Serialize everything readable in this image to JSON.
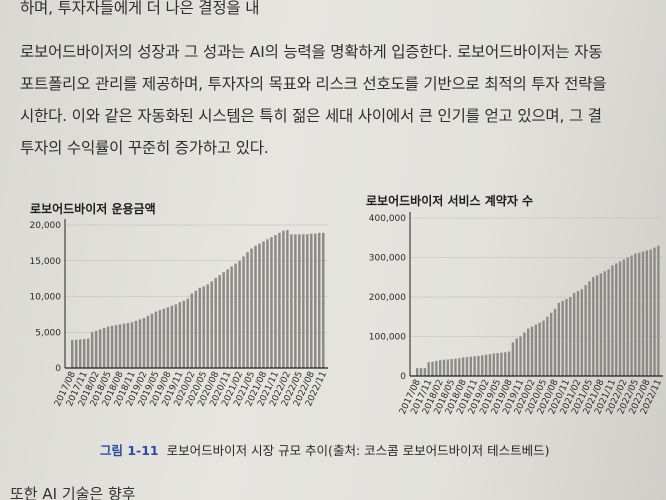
{
  "text": {
    "line0": "하며, 투자자들에게 더 나은 결정을 내",
    "line1": "로보어드바이저의 성장과 그 성과는 AI의 능력을 명확하게 입증한다. 로보어드바이저는 자동",
    "line2": "포트폴리오 관리를 제공하며, 투자자의 목표와 리스크 선호도를 기반으로 최적의 투자 전략을",
    "line3": "시한다. 이와 같은 자동화된 시스템은 특히 젊은 세대 사이에서 큰 인기를 얻고 있으며, 그 결",
    "line4": "투자의 수익률이 꾸준히 증가하고 있다.",
    "bottom": "또한 AI 기술은 향후"
  },
  "caption": {
    "number": "그림 1-11",
    "text": "로보어드바이저 시장 규모 추이(출처: 코스콤 로보어드바이저 테스트베드)"
  },
  "colors": {
    "bar": "#8b8a87",
    "axis": "#222222"
  },
  "chart_data": [
    {
      "type": "bar",
      "title": "로보어드바이저 운용금액",
      "ylim": [
        0,
        20000
      ],
      "yticks": [
        "0",
        "5,000",
        "10,000",
        "15,000",
        "20,000"
      ],
      "ytick_values": [
        0,
        5000,
        10000,
        15000,
        20000
      ],
      "xtick_labels": [
        "2017/08",
        "2017/11",
        "2018/02",
        "2018/05",
        "2018/08",
        "2018/11",
        "2019/02",
        "2019/05",
        "2019/08",
        "2019/11",
        "2020/02",
        "2020/05",
        "2020/08",
        "2020/11",
        "2021/02",
        "2021/05",
        "2021/08",
        "2021/11",
        "2022/02",
        "2022/05",
        "2022/08",
        "2022/11"
      ],
      "categories": [
        "2017/08",
        "2017/09",
        "2017/10",
        "2017/11",
        "2017/12",
        "2018/01",
        "2018/02",
        "2018/03",
        "2018/04",
        "2018/05",
        "2018/06",
        "2018/07",
        "2018/08",
        "2018/09",
        "2018/10",
        "2018/11",
        "2018/12",
        "2019/01",
        "2019/02",
        "2019/03",
        "2019/04",
        "2019/05",
        "2019/06",
        "2019/07",
        "2019/08",
        "2019/09",
        "2019/10",
        "2019/11",
        "2019/12",
        "2020/01",
        "2020/02",
        "2020/03",
        "2020/04",
        "2020/05",
        "2020/06",
        "2020/07",
        "2020/08",
        "2020/09",
        "2020/10",
        "2020/11",
        "2020/12",
        "2021/01",
        "2021/02",
        "2021/03",
        "2021/04",
        "2021/05",
        "2021/06",
        "2021/07",
        "2021/08",
        "2021/09",
        "2021/10",
        "2021/11",
        "2021/12",
        "2022/01",
        "2022/02",
        "2022/03",
        "2022/04",
        "2022/05",
        "2022/06",
        "2022/07",
        "2022/08",
        "2022/09",
        "2022/10",
        "2022/11"
      ],
      "values": [
        3900,
        3950,
        4000,
        4050,
        4100,
        5000,
        5200,
        5400,
        5600,
        5800,
        5900,
        6000,
        6100,
        6200,
        6300,
        6400,
        6600,
        6800,
        7000,
        7300,
        7600,
        7900,
        8100,
        8300,
        8500,
        8700,
        8900,
        9200,
        9400,
        9700,
        10400,
        10800,
        11200,
        11400,
        11700,
        12100,
        12600,
        13000,
        13400,
        13800,
        14200,
        14600,
        15000,
        15600,
        16200,
        16700,
        17100,
        17400,
        17700,
        18000,
        18300,
        18600,
        18900,
        19200,
        19300,
        18700,
        18700,
        18700,
        18700,
        18700,
        18800,
        18800,
        18900,
        18900
      ]
    },
    {
      "type": "bar",
      "title": "로보어드바이저 서비스 계약자 수",
      "ylim": [
        0,
        400000
      ],
      "yticks": [
        "0",
        "100,000",
        "200,000",
        "300,000",
        "400,000"
      ],
      "ytick_values": [
        0,
        100000,
        200000,
        300000,
        400000
      ],
      "xtick_labels": [
        "2017/08",
        "2017/11",
        "2018/02",
        "2018/05",
        "2018/08",
        "2018/11",
        "2019/02",
        "2019/05",
        "2019/08",
        "2019/11",
        "2020/02",
        "2020/05",
        "2020/08",
        "2020/11",
        "2021/02",
        "2021/05",
        "2021/08",
        "2021/11",
        "2022/02",
        "2022/05",
        "2022/08",
        "2022/11"
      ],
      "categories": [
        "2017/08",
        "2017/09",
        "2017/10",
        "2017/11",
        "2017/12",
        "2018/01",
        "2018/02",
        "2018/03",
        "2018/04",
        "2018/05",
        "2018/06",
        "2018/07",
        "2018/08",
        "2018/09",
        "2018/10",
        "2018/11",
        "2018/12",
        "2019/01",
        "2019/02",
        "2019/03",
        "2019/04",
        "2019/05",
        "2019/06",
        "2019/07",
        "2019/08",
        "2019/09",
        "2019/10",
        "2019/11",
        "2019/12",
        "2020/01",
        "2020/02",
        "2020/03",
        "2020/04",
        "2020/05",
        "2020/06",
        "2020/07",
        "2020/08",
        "2020/09",
        "2020/10",
        "2020/11",
        "2020/12",
        "2021/01",
        "2021/02",
        "2021/03",
        "2021/04",
        "2021/05",
        "2021/06",
        "2021/07",
        "2021/08",
        "2021/09",
        "2021/10",
        "2021/11",
        "2021/12",
        "2022/01",
        "2022/02",
        "2022/03",
        "2022/04",
        "2022/05",
        "2022/06",
        "2022/07",
        "2022/08",
        "2022/09",
        "2022/10",
        "2022/11"
      ],
      "values": [
        20000,
        20000,
        20000,
        35000,
        36000,
        38000,
        40000,
        41000,
        42000,
        43000,
        44000,
        45000,
        47000,
        48000,
        49000,
        50000,
        51000,
        52000,
        54000,
        55000,
        57000,
        58000,
        59000,
        60000,
        62000,
        85000,
        95000,
        100000,
        110000,
        120000,
        125000,
        130000,
        135000,
        140000,
        150000,
        160000,
        170000,
        185000,
        190000,
        195000,
        200000,
        210000,
        215000,
        220000,
        230000,
        240000,
        250000,
        255000,
        260000,
        265000,
        270000,
        280000,
        285000,
        290000,
        295000,
        300000,
        305000,
        310000,
        312000,
        315000,
        318000,
        320000,
        325000,
        330000
      ]
    }
  ]
}
